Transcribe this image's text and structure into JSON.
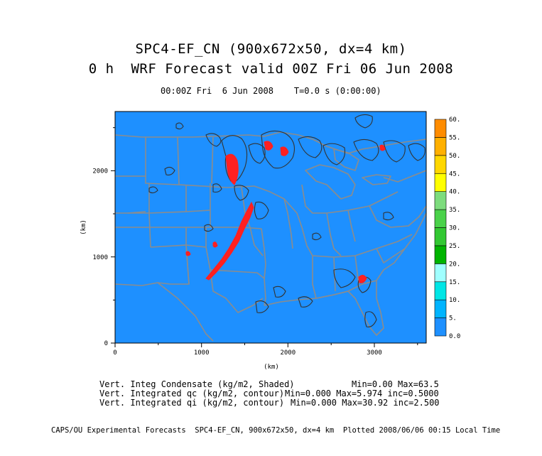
{
  "title": {
    "line1": "SPC4-EF_CN (900x672x50, dx=4 km)",
    "line2": "0 h  WRF Forecast valid 00Z Fri 06 Jun 2008",
    "line3": "00:00Z Fri  6 Jun 2008    T=0.0 s (0:00:00)"
  },
  "axes": {
    "x_label": "(km)",
    "y_label": "(km)",
    "x_ticks": [
      "0",
      "1000",
      "2000",
      "3000"
    ],
    "y_ticks": [
      "0",
      "1000",
      "2000"
    ],
    "x_range": [
      0,
      3600
    ],
    "y_range": [
      0,
      2688
    ]
  },
  "colorbar": {
    "labels": [
      "0.0",
      "5.",
      "10.",
      "15.",
      "20.",
      "25.",
      "30.",
      "35.",
      "40.",
      "45.",
      "50.",
      "55.",
      "60."
    ],
    "colors": [
      "#1e90ff",
      "#00b4ff",
      "#00e6e6",
      "#a0ffff",
      "#00b400",
      "#32c832",
      "#4ad24a",
      "#7ddc7d",
      "#ffff00",
      "#ffd700",
      "#ffb000",
      "#ff8c00",
      "#ff6400"
    ]
  },
  "notes": {
    "condensate_label": "Vert. Integ Condensate (kg/m2, Shaded)",
    "condensate_stats": "Min=0.00 Max=63.5",
    "qc_label": "Vert. Integrated qc (kg/m2, contour)",
    "qc_stats": "Min=0.000 Max=5.974 inc=0.5000",
    "qi_label": "Vert. Integrated qi (kg/m2, contour)",
    "qi_stats": "Min=0.000 Max=30.92 inc=2.500"
  },
  "footer": "CAPS/OU Experimental Forecasts  SPC4-EF_CN, 900x672x50, dx=4 km  Plotted 2008/06/06 00:15 Local Time",
  "colors": {
    "field_background": "#1e90ff",
    "boundary": "#8c8c8c",
    "contour": "#333333",
    "precip": "#ff2020"
  }
}
